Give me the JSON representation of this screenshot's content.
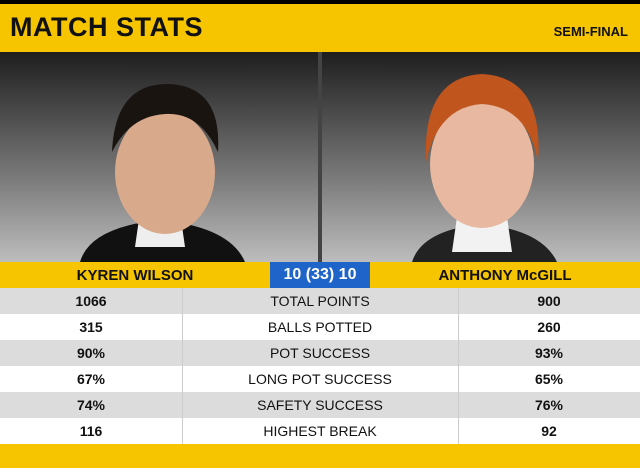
{
  "header": {
    "title": "MATCH STATS",
    "round": "SEMI-FINAL"
  },
  "players": {
    "left": "KYREN WILSON",
    "right": "ANTHONY McGILL",
    "score": "10 (33) 10"
  },
  "table": {
    "rows": [
      [
        "1066",
        "TOTAL POINTS",
        "900"
      ],
      [
        "315",
        "BALLS POTTED",
        "260"
      ],
      [
        "90%",
        "POT SUCCESS",
        "93%"
      ],
      [
        "67%",
        "LONG POT SUCCESS",
        "65%"
      ],
      [
        "74%",
        "SAFETY SUCCESS",
        "76%"
      ],
      [
        "116",
        "HIGHEST BREAK",
        "92"
      ]
    ]
  }
}
